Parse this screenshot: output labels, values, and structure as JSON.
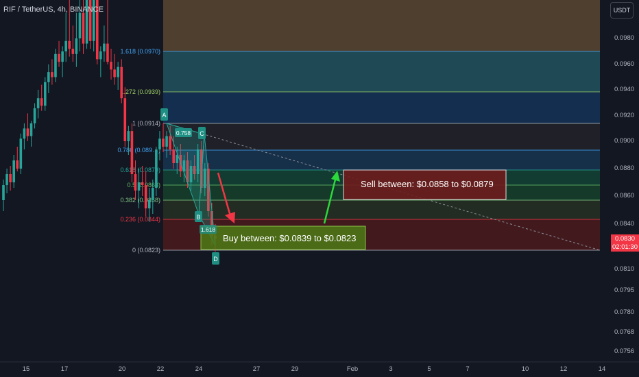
{
  "header": {
    "symbol_title": "RIF / TetherUS, 4h, BINANCE"
  },
  "toolbar": {
    "currency_label": "USDT"
  },
  "price_tag": {
    "price": "0.0830",
    "countdown": "02:01:30",
    "color": "#f23645"
  },
  "annotations": {
    "buy_box": "Buy between: $0.0839 to $0.0823",
    "sell_box": "Sell between: $0.0858 to $0.0879"
  },
  "pattern_points": [
    "A",
    "B",
    "C",
    "D"
  ],
  "pattern_ratios": [
    "0.758",
    "1.618"
  ],
  "chart_data": {
    "type": "candlestick",
    "symbol": "RIF / TetherUS",
    "interval": "4h",
    "exchange": "BINANCE",
    "y_axis_ticks": [
      "0.0980",
      "0.0960",
      "0.0940",
      "0.0920",
      "0.0900",
      "0.0880",
      "0.0860",
      "0.0840",
      "0.0810",
      "0.0795",
      "0.0780",
      "0.0768",
      "0.0756"
    ],
    "x_axis_ticks": [
      "15",
      "17",
      "20",
      "22",
      "24",
      "27",
      "29",
      "Feb",
      "3",
      "5",
      "7",
      "10",
      "12",
      "14"
    ],
    "fib_levels": [
      {
        "ratio": "1.618",
        "value": "(0.0970)",
        "color": "#42a5f5"
      },
      {
        "ratio": "1.272",
        "value": "(0.0939)",
        "color": "#9ccc65"
      },
      {
        "ratio": "1",
        "value": "(0.0914)",
        "color": "#b2b5be"
      },
      {
        "ratio": "0.786",
        "value": "(0.089…)",
        "color": "#42a5f5"
      },
      {
        "ratio": "0.618",
        "value": "(0.0879)",
        "color": "#26a69a"
      },
      {
        "ratio": "0.5",
        "value": "(0.0868)",
        "color": "#66bb6a"
      },
      {
        "ratio": "0.382",
        "value": "(0.0858)",
        "color": "#81c784"
      },
      {
        "ratio": "0.236",
        "value": "(0.0844)",
        "color": "#f23645"
      },
      {
        "ratio": "0",
        "value": "(0.0823)",
        "color": "#b2b5be"
      }
    ],
    "colors": {
      "up": "#26a69a",
      "down": "#f23645",
      "background": "#131722"
    },
    "candles": [
      [
        0.0858,
        0.0872,
        0.085,
        0.0868
      ],
      [
        0.0868,
        0.088,
        0.0862,
        0.0876
      ],
      [
        0.0876,
        0.0882,
        0.0864,
        0.087
      ],
      [
        0.087,
        0.089,
        0.0866,
        0.0886
      ],
      [
        0.0886,
        0.0896,
        0.0878,
        0.088
      ],
      [
        0.088,
        0.0906,
        0.0876,
        0.0902
      ],
      [
        0.0902,
        0.0914,
        0.0894,
        0.091
      ],
      [
        0.091,
        0.0922,
        0.09,
        0.0904
      ],
      [
        0.0904,
        0.0916,
        0.0896,
        0.0914
      ],
      [
        0.0914,
        0.093,
        0.091,
        0.0926
      ],
      [
        0.0926,
        0.094,
        0.0918,
        0.0934
      ],
      [
        0.0934,
        0.0944,
        0.0924,
        0.0928
      ],
      [
        0.0928,
        0.095,
        0.0924,
        0.0946
      ],
      [
        0.0946,
        0.096,
        0.0938,
        0.0954
      ],
      [
        0.0954,
        0.0964,
        0.0944,
        0.095
      ],
      [
        0.095,
        0.0972,
        0.0946,
        0.0968
      ],
      [
        0.0968,
        0.0978,
        0.0958,
        0.0962
      ],
      [
        0.0962,
        0.0974,
        0.095,
        0.097
      ],
      [
        0.097,
        0.0984,
        0.0962,
        0.0978
      ],
      [
        0.0978,
        0.0986,
        0.0966,
        0.0972
      ],
      [
        0.0972,
        0.0982,
        0.0962,
        0.0968
      ],
      [
        0.0968,
        0.0984,
        0.0958,
        0.098
      ],
      [
        0.098,
        0.099,
        0.097,
        0.0984
      ],
      [
        0.0984,
        0.0992,
        0.0968,
        0.0976
      ],
      [
        0.0976,
        0.099,
        0.0972,
        0.0986
      ],
      [
        0.0986,
        0.0994,
        0.0972,
        0.0978
      ],
      [
        0.0978,
        0.0992,
        0.097,
        0.0988
      ],
      [
        0.0988,
        0.0994,
        0.096,
        0.0964
      ],
      [
        0.0964,
        0.0974,
        0.095,
        0.097
      ],
      [
        0.097,
        0.0982,
        0.0962,
        0.0976
      ],
      [
        0.0976,
        0.0986,
        0.096,
        0.0962
      ],
      [
        0.0962,
        0.0972,
        0.0948,
        0.0956
      ],
      [
        0.0956,
        0.0968,
        0.0944,
        0.095
      ],
      [
        0.095,
        0.0962,
        0.094,
        0.0958
      ],
      [
        0.0958,
        0.0964,
        0.093,
        0.0934
      ],
      [
        0.0934,
        0.0942,
        0.0896,
        0.09
      ],
      [
        0.09,
        0.0912,
        0.089,
        0.0908
      ],
      [
        0.0908,
        0.0914,
        0.087,
        0.0876
      ],
      [
        0.0876,
        0.0886,
        0.0858,
        0.0864
      ],
      [
        0.0864,
        0.088,
        0.0852,
        0.087
      ],
      [
        0.087,
        0.0882,
        0.086,
        0.0868
      ],
      [
        0.0868,
        0.0878,
        0.0846,
        0.0852
      ],
      [
        0.0852,
        0.0866,
        0.0842,
        0.0858
      ],
      [
        0.0858,
        0.0872,
        0.0848,
        0.0866
      ],
      [
        0.0866,
        0.0896,
        0.086,
        0.0894
      ],
      [
        0.0894,
        0.0908,
        0.0886,
        0.0902
      ],
      [
        0.0902,
        0.0914,
        0.0892,
        0.0896
      ],
      [
        0.0896,
        0.0908,
        0.0888,
        0.0904
      ],
      [
        0.0904,
        0.0912,
        0.089,
        0.0894
      ],
      [
        0.0894,
        0.0904,
        0.088,
        0.0884
      ],
      [
        0.0884,
        0.0896,
        0.0876,
        0.089
      ],
      [
        0.089,
        0.0898,
        0.0874,
        0.0878
      ],
      [
        0.0878,
        0.089,
        0.087,
        0.0886
      ],
      [
        0.0886,
        0.0892,
        0.0866,
        0.087
      ],
      [
        0.087,
        0.0886,
        0.0864,
        0.0882
      ],
      [
        0.0882,
        0.089,
        0.0872,
        0.0876
      ],
      [
        0.0876,
        0.0898,
        0.087,
        0.0894
      ],
      [
        0.0894,
        0.09,
        0.0862,
        0.0866
      ],
      [
        0.0866,
        0.0884,
        0.086,
        0.088
      ],
      [
        0.088,
        0.0884,
        0.0846,
        0.085
      ],
      [
        0.085,
        0.0856,
        0.0826,
        0.0832
      ],
      [
        0.0832,
        0.084,
        0.0822,
        0.083
      ]
    ]
  }
}
